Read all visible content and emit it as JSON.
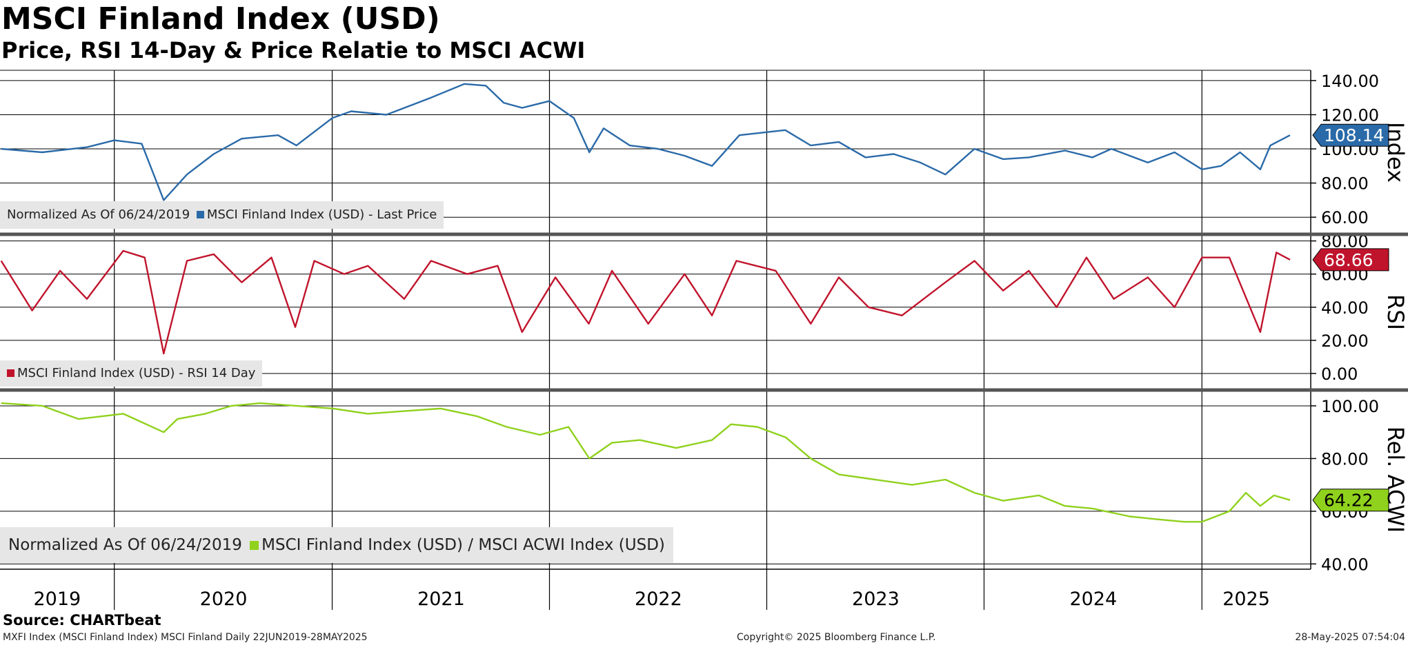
{
  "header": {
    "title": "MSCI Finland Index (USD)",
    "subtitle": "Price, RSI 14-Day & Price Relatie to MSCI ACWI"
  },
  "colors": {
    "price": "#2a6aa8",
    "rsi": "#c0142c",
    "relative": "#8fd11c",
    "grid": "#000000",
    "legend_bg": "#e6e6e6"
  },
  "chart_data": [
    {
      "type": "line",
      "panel": "price",
      "ylabel": "Index",
      "ylim": [
        50,
        146
      ],
      "yticks": [
        "140.00",
        "120.00",
        "100.00",
        "80.00",
        "60.00"
      ],
      "last_value": "108.14",
      "legend_prefix": "Normalized As Of 06/24/2019",
      "series": [
        {
          "name": "MSCI Finland Index (USD) - Last Price",
          "x": [
            "2019-06-24",
            "2019-09-01",
            "2019-11-15",
            "2019-12-31",
            "2020-02-15",
            "2020-03-23",
            "2020-05-01",
            "2020-06-15",
            "2020-08-01",
            "2020-10-01",
            "2020-11-01",
            "2020-12-31",
            "2021-02-01",
            "2021-04-01",
            "2021-06-15",
            "2021-08-10",
            "2021-09-15",
            "2021-10-15",
            "2021-11-15",
            "2021-12-31",
            "2022-02-10",
            "2022-03-08",
            "2022-04-01",
            "2022-05-15",
            "2022-07-01",
            "2022-08-15",
            "2022-09-30",
            "2022-11-15",
            "2023-01-31",
            "2023-03-15",
            "2023-05-01",
            "2023-06-15",
            "2023-08-01",
            "2023-09-15",
            "2023-10-27",
            "2023-12-15",
            "2024-02-01",
            "2024-03-15",
            "2024-05-15",
            "2024-06-30",
            "2024-08-01",
            "2024-10-01",
            "2024-11-15",
            "2024-12-31",
            "2025-02-01",
            "2025-03-05",
            "2025-04-08",
            "2025-04-25",
            "2025-05-28"
          ],
          "values": [
            100,
            98,
            101,
            105,
            103,
            70,
            85,
            97,
            106,
            108,
            102,
            118,
            122,
            120,
            130,
            138,
            137,
            127,
            124,
            128,
            118,
            98,
            112,
            102,
            100,
            96,
            90,
            108,
            111,
            102,
            104,
            95,
            97,
            92,
            85,
            100,
            94,
            95,
            99,
            95,
            100,
            92,
            98,
            88,
            90,
            98,
            88,
            102,
            108
          ]
        }
      ]
    },
    {
      "type": "line",
      "panel": "rsi",
      "ylabel": "RSI",
      "ylim": [
        -10,
        84
      ],
      "yticks": [
        "80.00",
        "60.00",
        "40.00",
        "20.00",
        "0.00"
      ],
      "last_value": "68.66",
      "series": [
        {
          "name": "MSCI Finland Index (USD) - RSI 14 Day",
          "x": [
            "2019-06-24",
            "2019-08-15",
            "2019-10-01",
            "2019-11-15",
            "2020-01-15",
            "2020-02-20",
            "2020-03-23",
            "2020-05-01",
            "2020-06-15",
            "2020-08-01",
            "2020-09-20",
            "2020-10-30",
            "2020-12-01",
            "2021-01-20",
            "2021-03-01",
            "2021-05-01",
            "2021-06-15",
            "2021-08-15",
            "2021-10-05",
            "2021-11-15",
            "2022-01-10",
            "2022-03-07",
            "2022-04-15",
            "2022-06-15",
            "2022-08-15",
            "2022-09-30",
            "2022-11-10",
            "2023-01-15",
            "2023-03-15",
            "2023-05-01",
            "2023-06-20",
            "2023-08-15",
            "2023-10-27",
            "2023-12-15",
            "2024-02-01",
            "2024-03-15",
            "2024-05-01",
            "2024-06-20",
            "2024-08-05",
            "2024-10-01",
            "2024-11-15",
            "2024-12-31",
            "2025-02-15",
            "2025-04-08",
            "2025-05-05",
            "2025-05-28"
          ],
          "values": [
            68,
            38,
            62,
            45,
            74,
            70,
            12,
            68,
            72,
            55,
            70,
            28,
            68,
            60,
            65,
            45,
            68,
            60,
            65,
            25,
            58,
            30,
            62,
            30,
            60,
            35,
            68,
            62,
            30,
            58,
            40,
            35,
            55,
            68,
            50,
            62,
            40,
            70,
            45,
            58,
            40,
            70,
            70,
            25,
            73,
            68.66
          ]
        }
      ]
    },
    {
      "type": "line",
      "panel": "relative",
      "ylabel": "Rel. ACWI",
      "ylim": [
        38,
        106
      ],
      "yticks": [
        "100.00",
        "80.00",
        "60.00",
        "40.00"
      ],
      "last_value": "64.22",
      "legend_prefix": "Normalized As Of 06/24/2019",
      "series": [
        {
          "name": "MSCI Finland Index (USD) / MSCI ACWI Index (USD)",
          "x": [
            "2019-06-24",
            "2019-09-01",
            "2019-11-01",
            "2020-01-15",
            "2020-03-23",
            "2020-04-15",
            "2020-06-01",
            "2020-07-15",
            "2020-09-01",
            "2020-11-01",
            "2021-01-01",
            "2021-03-01",
            "2021-05-01",
            "2021-07-01",
            "2021-09-01",
            "2021-10-20",
            "2021-12-15",
            "2022-02-01",
            "2022-03-08",
            "2022-04-15",
            "2022-06-01",
            "2022-08-01",
            "2022-09-30",
            "2022-11-01",
            "2022-12-15",
            "2023-02-01",
            "2023-03-15",
            "2023-05-01",
            "2023-07-01",
            "2023-09-01",
            "2023-10-27",
            "2023-12-15",
            "2024-02-01",
            "2024-04-01",
            "2024-05-15",
            "2024-07-01",
            "2024-09-01",
            "2024-10-15",
            "2024-12-01",
            "2024-12-31",
            "2025-02-15",
            "2025-03-15",
            "2025-04-08",
            "2025-05-01",
            "2025-05-28"
          ],
          "values": [
            101,
            100,
            95,
            97,
            90,
            95,
            97,
            100,
            101,
            100,
            99,
            97,
            98,
            99,
            96,
            92,
            89,
            92,
            80,
            86,
            87,
            84,
            87,
            93,
            92,
            88,
            80,
            74,
            72,
            70,
            72,
            67,
            64,
            66,
            62,
            61,
            58,
            57,
            56,
            56,
            60,
            67,
            62,
            66,
            64.22
          ]
        }
      ]
    }
  ],
  "x_axis": {
    "ticks": [
      "2019",
      "2020",
      "2021",
      "2022",
      "2023",
      "2024",
      "2025"
    ]
  },
  "footer": {
    "source": "Source: CHARTbeat",
    "left": "MXFI Index (MSCI Finland Index) MSCI Finland  Daily 22JUN2019-28MAY2025",
    "center": "Copyright© 2025 Bloomberg Finance L.P.",
    "right": "28-May-2025 07:54:04"
  }
}
